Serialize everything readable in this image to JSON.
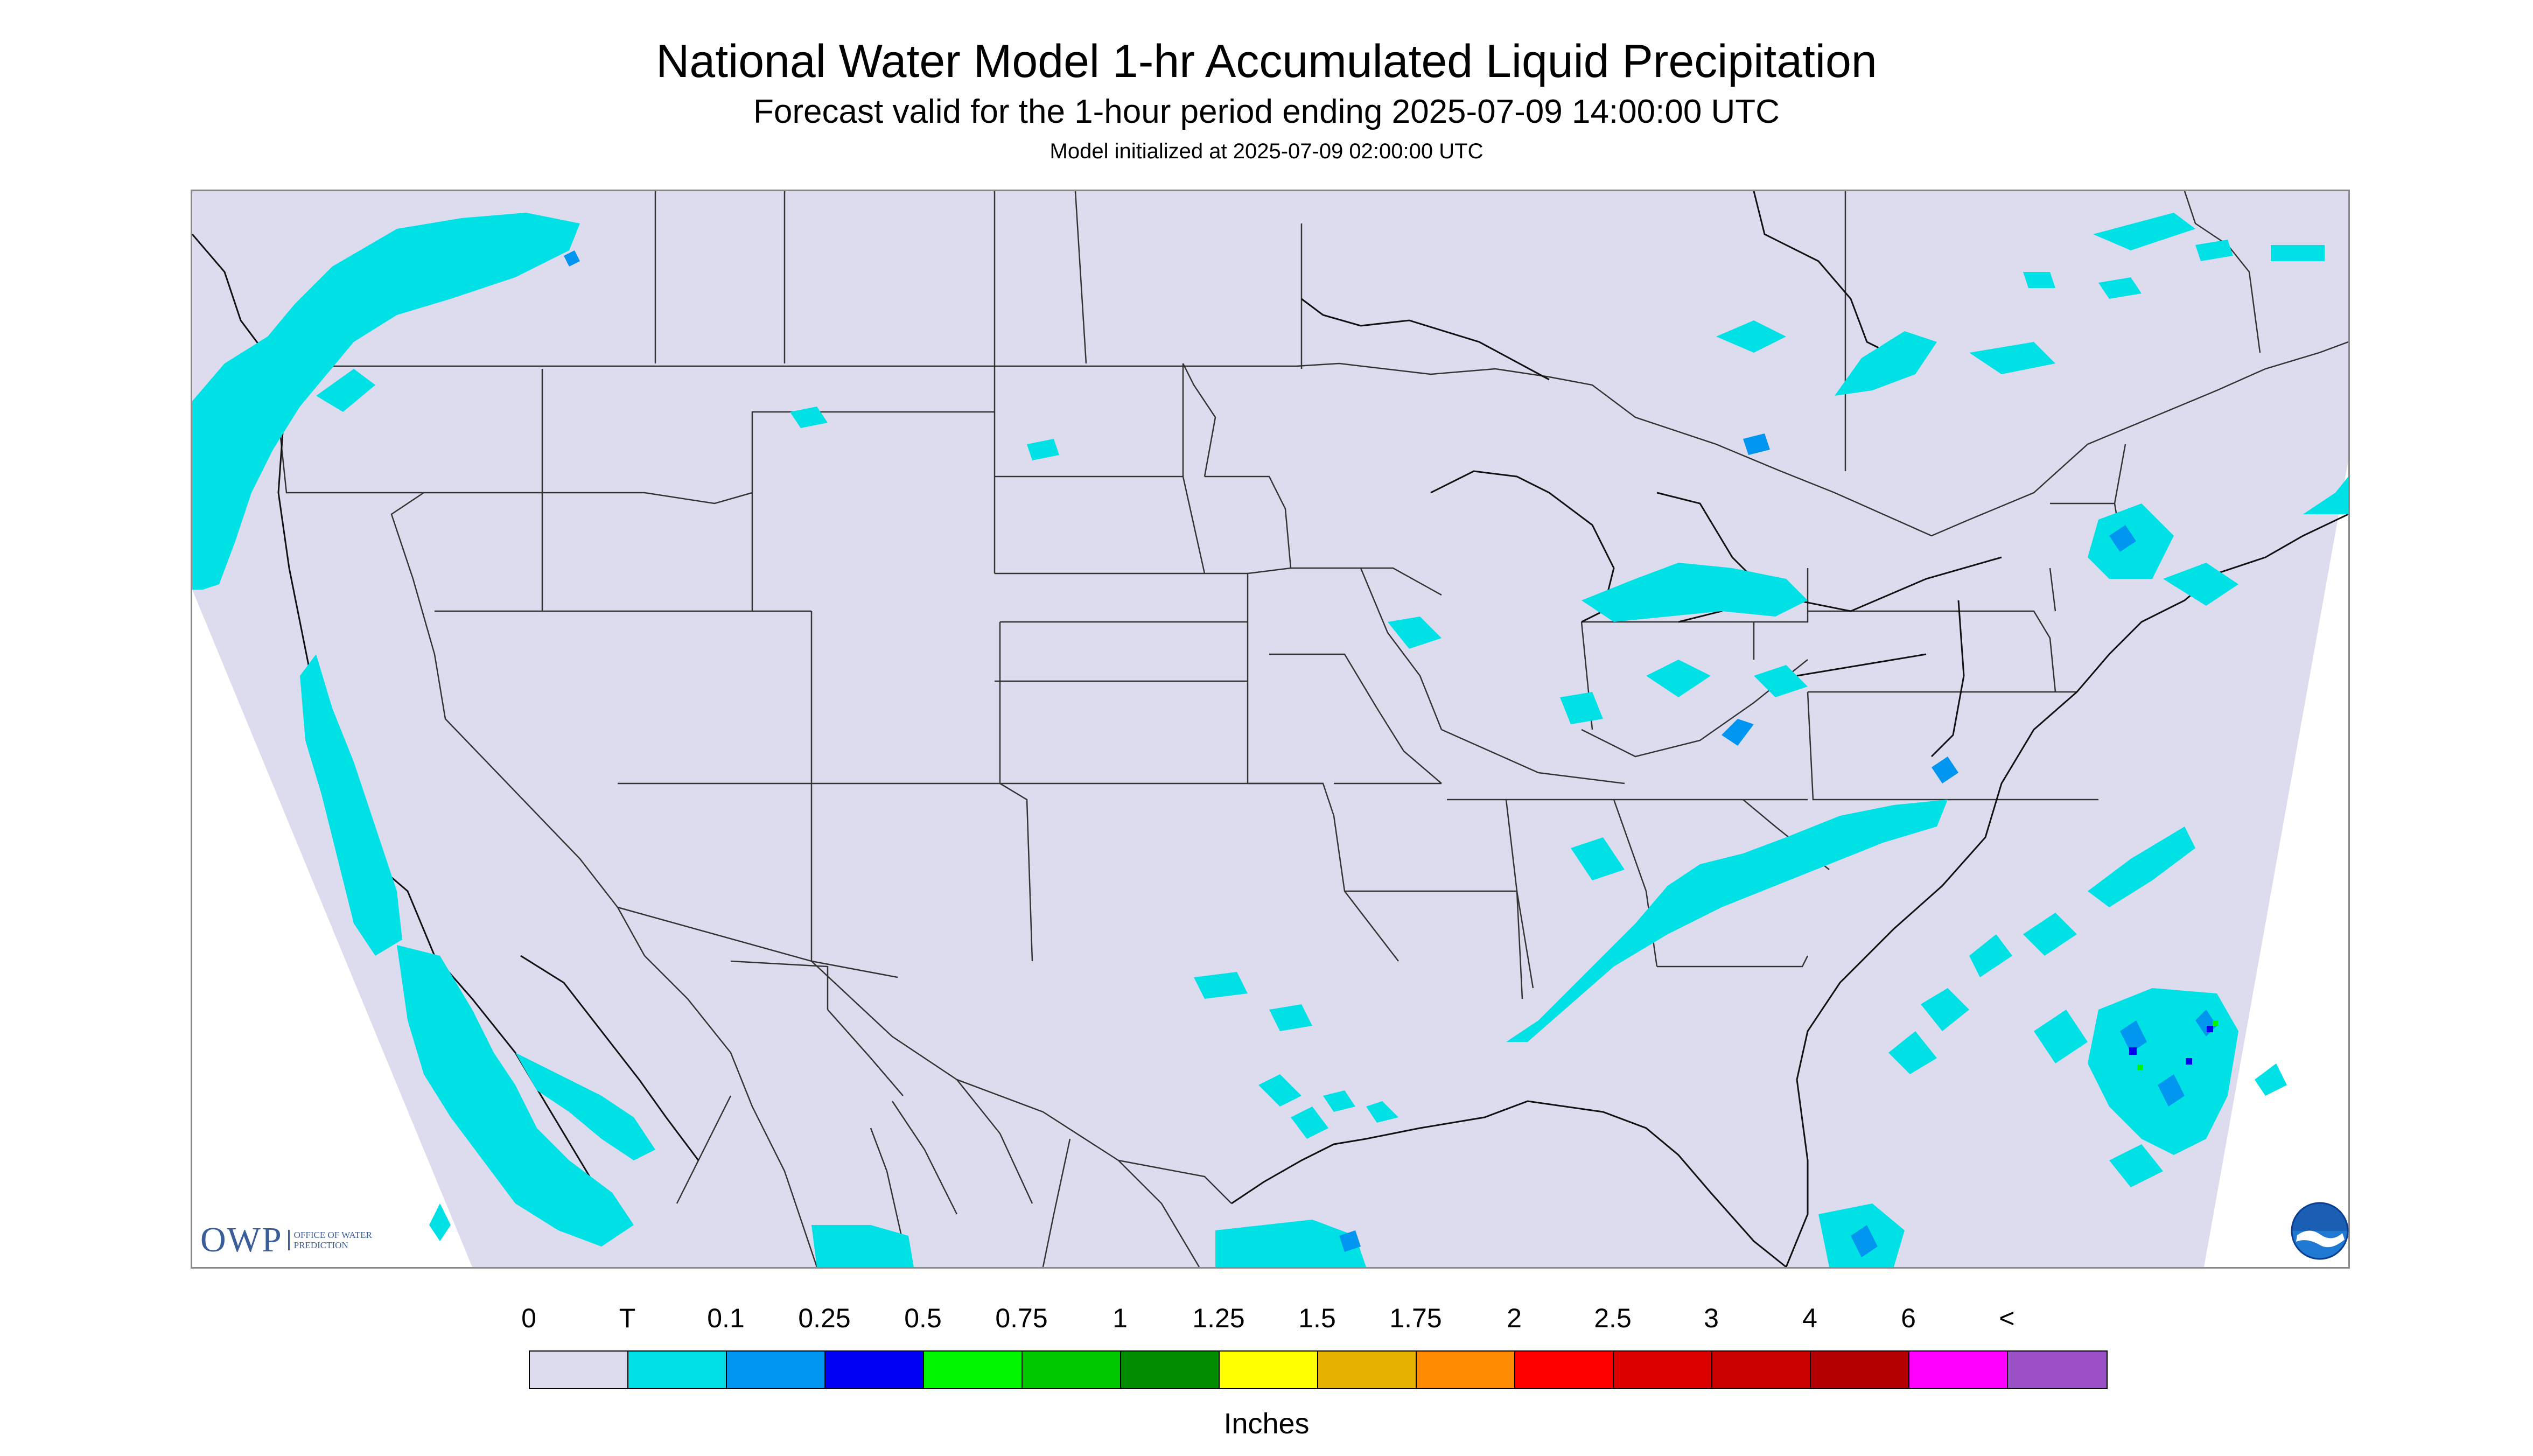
{
  "header": {
    "title": "National Water Model 1-hr Accumulated Liquid Precipitation",
    "subtitle": "Forecast valid for the 1-hour period ending 2025-07-09 14:00:00 UTC",
    "init_line": "Model initialized at 2025-07-09 02:00:00 UTC"
  },
  "colors": {
    "map_background": "#dcdcee",
    "outside_domain": "#ffffff",
    "boundary_lines": "#333333",
    "trace_precip": "#00e1e6",
    "precip_0_1": "#0096f0",
    "precip_0_25": "#0000f5",
    "precip_0_5": "#00f500"
  },
  "logos": {
    "owp_mark": "OWP",
    "owp_text": "OFFICE OF WATER PREDICTION",
    "noaa": "NOAA"
  },
  "legend": {
    "labels": [
      "0",
      "T",
      "0.1",
      "0.25",
      "0.5",
      "0.75",
      "1",
      "1.25",
      "1.5",
      "1.75",
      "2",
      "2.5",
      "3",
      "4",
      "6",
      "<"
    ],
    "colors": [
      "#dcdcee",
      "#00e1e6",
      "#0096f0",
      "#0000f5",
      "#00f500",
      "#00c800",
      "#008c00",
      "#ffff00",
      "#e6b400",
      "#ff8c00",
      "#ff0000",
      "#dc0000",
      "#c80000",
      "#b40000",
      "#ff00ff",
      "#9b50c8"
    ],
    "units": "Inches"
  }
}
